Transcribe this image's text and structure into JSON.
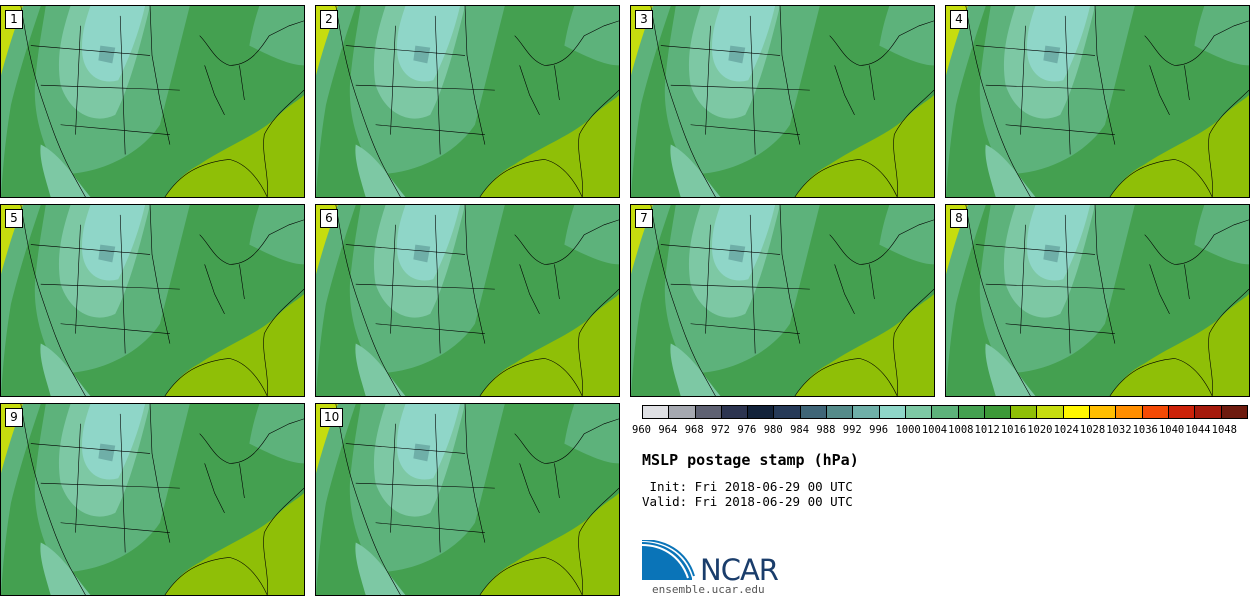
{
  "stamps": [
    {
      "label": "1"
    },
    {
      "label": "2"
    },
    {
      "label": "3"
    },
    {
      "label": "4"
    },
    {
      "label": "5"
    },
    {
      "label": "6"
    },
    {
      "label": "7"
    },
    {
      "label": "8"
    },
    {
      "label": "9"
    },
    {
      "label": "10"
    }
  ],
  "colorbar": {
    "colors": [
      "#dfe0e4",
      "#a5a8b0",
      "#5e6172",
      "#2c3450",
      "#12223a",
      "#263a58",
      "#3f6577",
      "#558b8a",
      "#6fafa8",
      "#8fd6c8",
      "#7dc8a4",
      "#5db27b",
      "#44a050",
      "#3c9938",
      "#8fbf07",
      "#c6dd0f",
      "#fff601",
      "#ffbe01",
      "#ff8e00",
      "#f44a05",
      "#cc2209",
      "#a51a0c",
      "#6e1b0f"
    ],
    "ticks": [
      "960",
      "964",
      "968",
      "972",
      "976",
      "980",
      "984",
      "988",
      "992",
      "996",
      "1000",
      "1004",
      "1008",
      "1012",
      "1016",
      "1020",
      "1024",
      "1028",
      "1032",
      "1036",
      "1040",
      "1044",
      "1048"
    ]
  },
  "legend": {
    "title": "MSLP postage stamp (hPa)",
    "init": " Init: Fri 2018-06-29 00 UTC",
    "valid": "Valid: Fri 2018-06-29 00 UTC"
  },
  "logo": {
    "text": "NCAR",
    "url": "ensemble.ucar.edu"
  },
  "colors": {
    "gulf": "#8fbf07",
    "coast_west": "#c6dd0f",
    "dark_green": "#44a050",
    "mid_green": "#5db27b",
    "light_green": "#7dc8a4",
    "aqua": "#8fd6c8",
    "teal": "#6fafa8",
    "ncar_blue": "#0a74b8"
  }
}
